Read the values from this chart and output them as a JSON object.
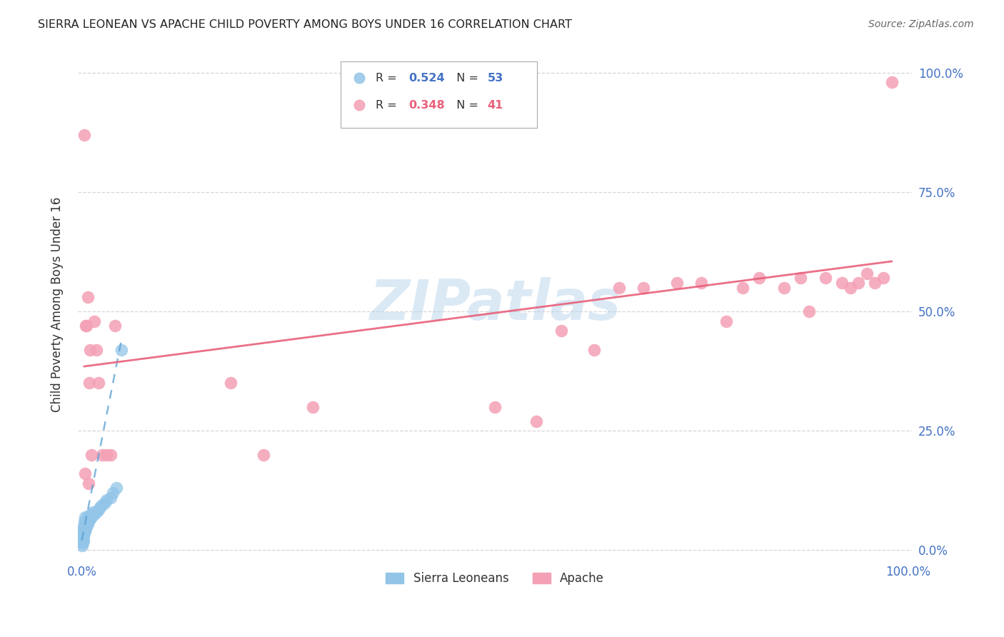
{
  "title": "SIERRA LEONEAN VS APACHE CHILD POVERTY AMONG BOYS UNDER 16 CORRELATION CHART",
  "source": "Source: ZipAtlas.com",
  "ylabel": "Child Poverty Among Boys Under 16",
  "watermark": "ZIPatlas",
  "blue_color": "#92c5e8",
  "pink_color": "#f4a0b5",
  "blue_line_color": "#5a9fd4",
  "pink_line_color": "#e8607a",
  "grid_color": "#cccccc",
  "title_color": "#222222",
  "source_color": "#666666",
  "tick_label_color": "#4472c4",
  "legend_r_color_blue": "#4472c4",
  "legend_r_color_pink": "#e8607a",
  "legend_n_color_blue": "#4472c4",
  "legend_n_color_pink": "#e8607a",
  "blue_scatter_x": [
    0.0002,
    0.0003,
    0.0004,
    0.0005,
    0.0006,
    0.0007,
    0.0008,
    0.0009,
    0.001,
    0.001,
    0.0012,
    0.0013,
    0.0014,
    0.0015,
    0.0016,
    0.0017,
    0.0018,
    0.0019,
    0.002,
    0.002,
    0.0022,
    0.0023,
    0.0024,
    0.0025,
    0.003,
    0.003,
    0.003,
    0.004,
    0.004,
    0.004,
    0.005,
    0.005,
    0.006,
    0.006,
    0.007,
    0.007,
    0.008,
    0.009,
    0.01,
    0.011,
    0.012,
    0.013,
    0.015,
    0.018,
    0.02,
    0.022,
    0.025,
    0.028,
    0.03,
    0.035,
    0.038,
    0.042,
    0.048
  ],
  "blue_scatter_y": [
    0.02,
    0.03,
    0.015,
    0.025,
    0.01,
    0.02,
    0.03,
    0.015,
    0.02,
    0.04,
    0.025,
    0.03,
    0.02,
    0.035,
    0.025,
    0.03,
    0.02,
    0.04,
    0.03,
    0.05,
    0.035,
    0.04,
    0.03,
    0.045,
    0.04,
    0.05,
    0.06,
    0.04,
    0.055,
    0.07,
    0.045,
    0.06,
    0.05,
    0.065,
    0.055,
    0.07,
    0.06,
    0.07,
    0.065,
    0.075,
    0.07,
    0.08,
    0.075,
    0.08,
    0.085,
    0.09,
    0.095,
    0.1,
    0.105,
    0.11,
    0.12,
    0.13,
    0.42
  ],
  "pink_scatter_x": [
    0.003,
    0.004,
    0.005,
    0.006,
    0.007,
    0.008,
    0.009,
    0.01,
    0.012,
    0.015,
    0.018,
    0.02,
    0.025,
    0.03,
    0.035,
    0.04,
    0.18,
    0.22,
    0.28,
    0.5,
    0.55,
    0.58,
    0.62,
    0.65,
    0.68,
    0.72,
    0.75,
    0.78,
    0.8,
    0.82,
    0.85,
    0.87,
    0.88,
    0.9,
    0.92,
    0.93,
    0.94,
    0.95,
    0.96,
    0.97,
    0.98
  ],
  "pink_scatter_y": [
    0.87,
    0.16,
    0.47,
    0.47,
    0.53,
    0.14,
    0.35,
    0.42,
    0.2,
    0.48,
    0.42,
    0.35,
    0.2,
    0.2,
    0.2,
    0.47,
    0.35,
    0.2,
    0.3,
    0.3,
    0.27,
    0.46,
    0.42,
    0.55,
    0.55,
    0.56,
    0.56,
    0.48,
    0.55,
    0.57,
    0.55,
    0.57,
    0.5,
    0.57,
    0.56,
    0.55,
    0.56,
    0.58,
    0.56,
    0.57,
    0.98
  ],
  "blue_trend_x": [
    0.0,
    0.048
  ],
  "blue_trend_y": [
    0.02,
    0.44
  ],
  "pink_trend_x": [
    0.003,
    0.98
  ],
  "pink_trend_y": [
    0.385,
    0.605
  ],
  "xlim": [
    -0.005,
    1.005
  ],
  "ylim": [
    -0.02,
    1.05
  ]
}
